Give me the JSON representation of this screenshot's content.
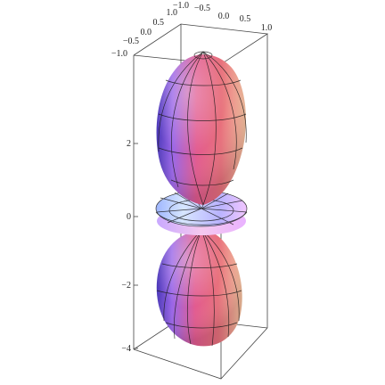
{
  "top_axis_1_ticks": [
    "1.0",
    "0.5",
    "0.0",
    "−0.5",
    "−1.0"
  ],
  "top_axis_2_ticks": [
    "−1.0",
    "−0.5",
    "0.0",
    "0.5",
    "1.0"
  ],
  "z_axis_ticks": [
    "−4",
    "−2",
    "0",
    "2"
  ],
  "colors": {
    "lobe_light": "#f4b89a",
    "lobe_pink": "#e25b8f",
    "lobe_shadow": "#6a4ec9",
    "lobe_highlight": "#d9b6ff",
    "torus_light": "#c7dcff",
    "torus_mid": "#b8b6ff",
    "torus_shadow": "#e8b9ff"
  }
}
